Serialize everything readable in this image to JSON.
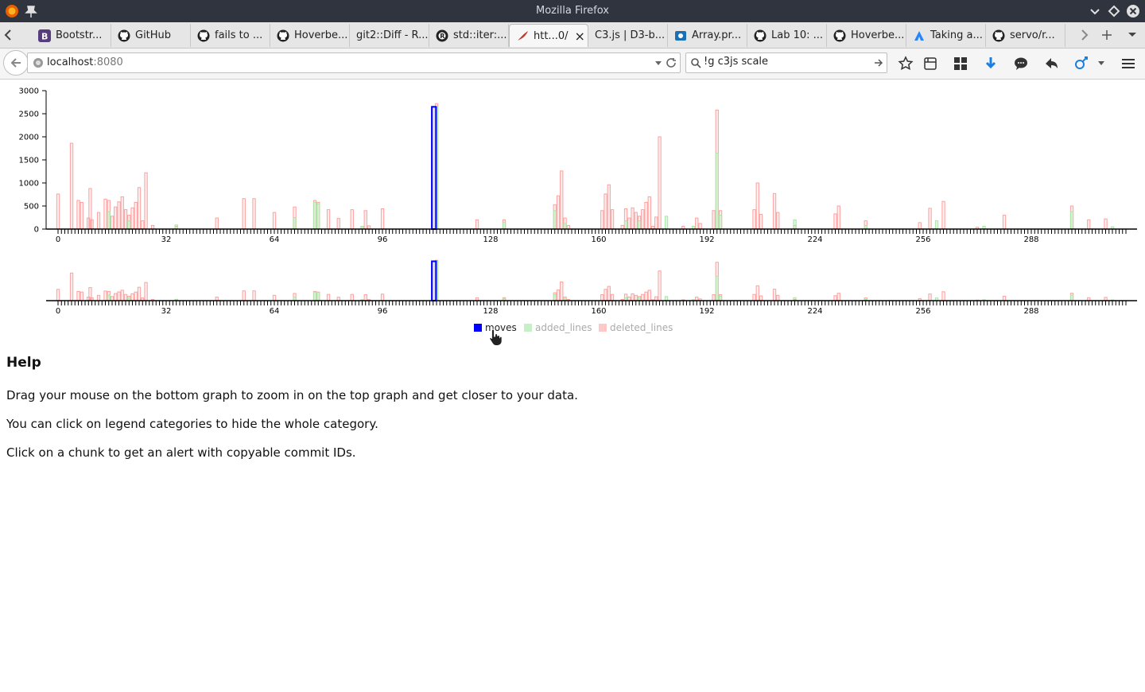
{
  "window": {
    "title": "Mozilla Firefox"
  },
  "tabs": [
    {
      "label": "Bootstr...",
      "icon": "bootstrap-icon"
    },
    {
      "label": "GitHub",
      "icon": "github-icon"
    },
    {
      "label": "fails to ...",
      "icon": "github-icon"
    },
    {
      "label": "Hoverbe...",
      "icon": "github-icon"
    },
    {
      "label": "git2::Diff - R...",
      "icon": "none"
    },
    {
      "label": "std::iter:...",
      "icon": "rust-icon"
    },
    {
      "label": "htt...0/",
      "icon": "feather-icon",
      "active": true
    },
    {
      "label": "C3.js | D3-b...",
      "icon": "none"
    },
    {
      "label": "Array.pr...",
      "icon": "mdn-icon"
    },
    {
      "label": "Lab 10: ...",
      "icon": "github-icon"
    },
    {
      "label": "Hoverbe...",
      "icon": "github-icon"
    },
    {
      "label": "Taking a...",
      "icon": "atlassian-icon"
    },
    {
      "label": "servo/r...",
      "icon": "github-icon"
    }
  ],
  "navbar": {
    "url_host": "localhost",
    "url_port": ":8080",
    "search_value": "!g c3js scale"
  },
  "chart_data": [
    {
      "type": "bar",
      "role": "main",
      "xlim": [
        0,
        316
      ],
      "ylim": [
        0,
        3000
      ],
      "y_ticks": [
        0,
        500,
        1000,
        1500,
        2000,
        2500,
        3000
      ],
      "x_ticks": [
        0,
        32,
        64,
        96,
        128,
        160,
        192,
        224,
        256,
        288
      ],
      "series": [
        {
          "name": "moves",
          "color": "#0000ff",
          "points": [
            [
              111,
              2650
            ]
          ]
        },
        {
          "name": "added_lines",
          "color": "#a8e6a8",
          "points": [
            [
              15,
              380
            ],
            [
              21,
              180
            ],
            [
              35,
              90
            ],
            [
              70,
              250
            ],
            [
              76,
              580
            ],
            [
              77,
              550
            ],
            [
              90,
              60
            ],
            [
              112,
              2650
            ],
            [
              132,
              150
            ],
            [
              147,
              400
            ],
            [
              150,
              120
            ],
            [
              168,
              180
            ],
            [
              172,
              180
            ],
            [
              180,
              280
            ],
            [
              188,
              60
            ],
            [
              195,
              1650
            ],
            [
              196,
              300
            ],
            [
              218,
              200
            ],
            [
              239,
              80
            ],
            [
              260,
              180
            ],
            [
              274,
              60
            ],
            [
              300,
              380
            ],
            [
              312,
              50
            ]
          ]
        },
        {
          "name": "deleted_lines",
          "color": "#ff9f9f",
          "points": [
            [
              0,
              760
            ],
            [
              4,
              1860
            ],
            [
              6,
              620
            ],
            [
              7,
              580
            ],
            [
              9,
              240
            ],
            [
              9.5,
              880
            ],
            [
              10,
              200
            ],
            [
              12,
              360
            ],
            [
              14,
              650
            ],
            [
              15,
              620
            ],
            [
              16,
              280
            ],
            [
              17,
              480
            ],
            [
              18,
              590
            ],
            [
              19,
              700
            ],
            [
              20,
              420
            ],
            [
              21,
              300
            ],
            [
              22,
              460
            ],
            [
              23,
              580
            ],
            [
              24,
              900
            ],
            [
              25,
              180
            ],
            [
              26,
              1220
            ],
            [
              28,
              80
            ],
            [
              35,
              60
            ],
            [
              47,
              240
            ],
            [
              55,
              660
            ],
            [
              58,
              660
            ],
            [
              64,
              360
            ],
            [
              70,
              480
            ],
            [
              76,
              620
            ],
            [
              77,
              580
            ],
            [
              80,
              420
            ],
            [
              83,
              230
            ],
            [
              87,
              420
            ],
            [
              90,
              60
            ],
            [
              91,
              400
            ],
            [
              92,
              70
            ],
            [
              96,
              440
            ],
            [
              112,
              2720
            ],
            [
              124,
              200
            ],
            [
              132,
              200
            ],
            [
              147,
              530
            ],
            [
              148,
              720
            ],
            [
              149,
              1260
            ],
            [
              150,
              240
            ],
            [
              151,
              80
            ],
            [
              161,
              400
            ],
            [
              162,
              760
            ],
            [
              163,
              960
            ],
            [
              164,
              420
            ],
            [
              167,
              80
            ],
            [
              168,
              440
            ],
            [
              169,
              240
            ],
            [
              170,
              460
            ],
            [
              171,
              360
            ],
            [
              172,
              280
            ],
            [
              173,
              420
            ],
            [
              174,
              580
            ],
            [
              175,
              700
            ],
            [
              176,
              60
            ],
            [
              177,
              260
            ],
            [
              178,
              2000
            ],
            [
              185,
              60
            ],
            [
              189,
              240
            ],
            [
              190,
              120
            ],
            [
              194,
              400
            ],
            [
              195,
              2580
            ],
            [
              196,
              400
            ],
            [
              206,
              420
            ],
            [
              207,
              1000
            ],
            [
              208,
              320
            ],
            [
              212,
              770
            ],
            [
              213,
              360
            ],
            [
              218,
              80
            ],
            [
              230,
              330
            ],
            [
              231,
              500
            ],
            [
              239,
              180
            ],
            [
              255,
              140
            ],
            [
              258,
              450
            ],
            [
              262,
              600
            ],
            [
              272,
              40
            ],
            [
              280,
              300
            ],
            [
              300,
              500
            ],
            [
              305,
              200
            ],
            [
              310,
              220
            ]
          ]
        }
      ]
    },
    {
      "type": "bar",
      "role": "subchart",
      "xlim": [
        0,
        316
      ],
      "x_ticks": [
        0,
        32,
        64,
        96,
        128,
        160,
        192,
        224,
        256,
        288
      ]
    }
  ],
  "legend": [
    {
      "label": "moves",
      "color": "#0000ff"
    },
    {
      "label": "added_lines",
      "color": "#a8e6a8"
    },
    {
      "label": "deleted_lines",
      "color": "#ff9f9f"
    }
  ],
  "help": {
    "title": "Help",
    "lines": [
      "Drag your mouse on the bottom graph to zoom in on the top graph and get closer to your data.",
      "You can click on legend categories to hide the whole category.",
      "Click on a chunk to get an alert with copyable commit IDs."
    ]
  }
}
